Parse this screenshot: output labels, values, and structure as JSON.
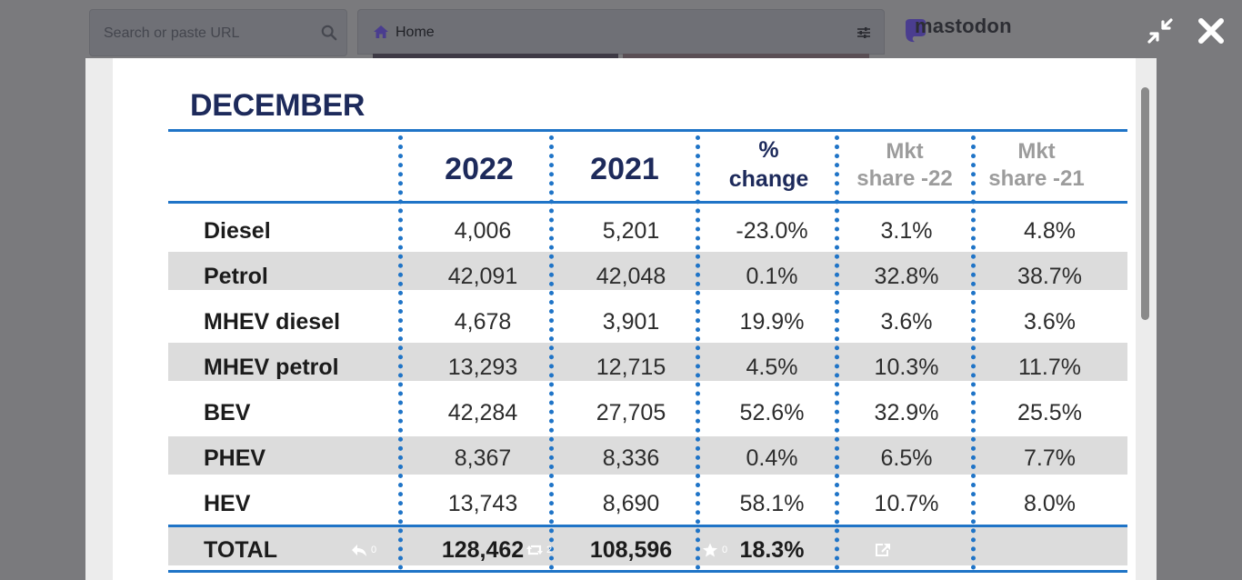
{
  "search": {
    "placeholder": "Search or paste URL",
    "icon": "search-icon"
  },
  "column": {
    "title": "Home",
    "icon": "home-icon",
    "settings_icon": "sliders-icon"
  },
  "brand": {
    "name": "mastodon"
  },
  "modal_controls": {
    "collapse_icon": "collapse-icon",
    "close_icon": "close-icon"
  },
  "colors": {
    "accent_blue": "#1f74c7",
    "title_navy": "#1d2a5b",
    "band_gray": "#dcdcdc",
    "muted_header": "#9c9c9c"
  },
  "infographic": {
    "title": "DECEMBER",
    "headers": {
      "y2022": "2022",
      "y2021": "2021",
      "pct_line1": "%",
      "pct_line2": "change",
      "mkt22_line1": "Mkt",
      "mkt22_line2": "share -22",
      "mkt21_line1": "Mkt",
      "mkt21_line2": "share -21"
    },
    "rows": [
      {
        "label": "Diesel",
        "y2022": "4,006",
        "y2021": "5,201",
        "change": "-23.0%",
        "mkt22": "3.1%",
        "mkt21": "4.8%"
      },
      {
        "label": "Petrol",
        "y2022": "42,091",
        "y2021": "42,048",
        "change": "0.1%",
        "mkt22": "32.8%",
        "mkt21": "38.7%"
      },
      {
        "label": "MHEV diesel",
        "y2022": "4,678",
        "y2021": "3,901",
        "change": "19.9%",
        "mkt22": "3.6%",
        "mkt21": "3.6%"
      },
      {
        "label": "MHEV petrol",
        "y2022": "13,293",
        "y2021": "12,715",
        "change": "4.5%",
        "mkt22": "10.3%",
        "mkt21": "11.7%"
      },
      {
        "label": "BEV",
        "y2022": "42,284",
        "y2021": "27,705",
        "change": "52.6%",
        "mkt22": "32.9%",
        "mkt21": "25.5%"
      },
      {
        "label": "PHEV",
        "y2022": "8,367",
        "y2021": "8,336",
        "change": "0.4%",
        "mkt22": "6.5%",
        "mkt21": "7.7%"
      },
      {
        "label": "HEV",
        "y2022": "13,743",
        "y2021": "8,690",
        "change": "58.1%",
        "mkt22": "10.7%",
        "mkt21": "8.0%"
      }
    ],
    "total": {
      "label": "TOTAL",
      "y2022": "128,462",
      "y2021": "108,596",
      "change": "18.3%",
      "mkt22": "",
      "mkt21": ""
    }
  },
  "actions": {
    "reply": {
      "icon": "reply-icon",
      "count": "0"
    },
    "boost": {
      "icon": "boost-icon",
      "count": "2"
    },
    "favourite": {
      "icon": "star-icon",
      "count": "0"
    },
    "open": {
      "icon": "external-link-icon"
    }
  }
}
